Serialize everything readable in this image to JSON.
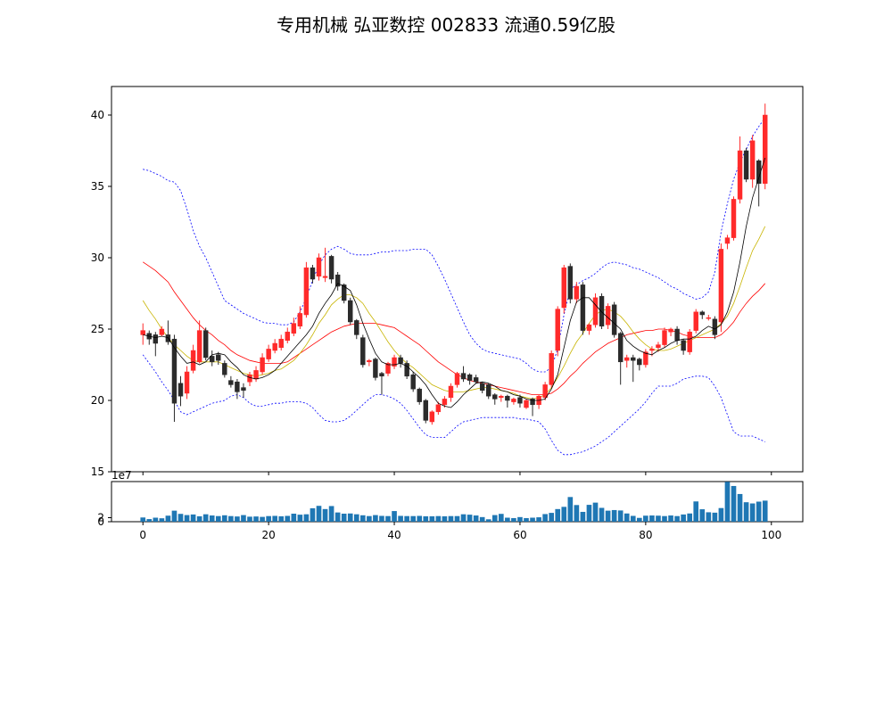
{
  "chart_data": [
    {
      "type": "candlestick",
      "title": "专用机械 弘亚数控 002833 流通0.59亿股",
      "xlabel": "",
      "ylabel": "",
      "xlim": [
        -5,
        105
      ],
      "ylim": [
        15,
        42
      ],
      "y_ticks": [
        15,
        20,
        25,
        30,
        35,
        40
      ],
      "x_tick_labels_shown": false,
      "grid": false,
      "colors": {
        "up": "#ff2a2a",
        "down": "#2b2b2b",
        "ma_short": "#000000",
        "ma_mid": "#c8b400",
        "ma_long": "#ff0000",
        "bands": "#0000ff"
      },
      "x": [
        0,
        1,
        2,
        3,
        4,
        5,
        6,
        7,
        8,
        9,
        10,
        11,
        12,
        13,
        14,
        15,
        16,
        17,
        18,
        19,
        20,
        21,
        22,
        23,
        24,
        25,
        26,
        27,
        28,
        29,
        30,
        31,
        32,
        33,
        34,
        35,
        36,
        37,
        38,
        39,
        40,
        41,
        42,
        43,
        44,
        45,
        46,
        47,
        48,
        49,
        50,
        51,
        52,
        53,
        54,
        55,
        56,
        57,
        58,
        59,
        60,
        61,
        62,
        63,
        64,
        65,
        66,
        67,
        68,
        69,
        70,
        71,
        72,
        73,
        74,
        75,
        76,
        77,
        78,
        79,
        80,
        81,
        82,
        83,
        84,
        85,
        86,
        87,
        88,
        89,
        90,
        91,
        92,
        93,
        94,
        95,
        96,
        97,
        98,
        99
      ],
      "open": [
        24.6,
        24.7,
        24.6,
        24.6,
        24.6,
        24.3,
        21.2,
        20.5,
        22.1,
        22.7,
        24.9,
        23.1,
        23.2,
        22.6,
        21.4,
        21.3,
        20.9,
        21.3,
        21.5,
        22.0,
        22.9,
        23.5,
        23.7,
        24.2,
        24.7,
        25.2,
        26.0,
        29.3,
        28.7,
        28.6,
        30.1,
        28.8,
        28.1,
        27.0,
        25.6,
        24.4,
        22.7,
        22.9,
        21.9,
        21.9,
        22.4,
        23.0,
        22.6,
        21.8,
        20.8,
        20.0,
        18.5,
        19.2,
        19.7,
        20.2,
        21.1,
        21.9,
        21.8,
        21.6,
        21.2,
        21.1,
        20.4,
        20.2,
        20.3,
        19.9,
        20.2,
        19.5,
        20.1,
        19.7,
        20.2,
        21.1,
        23.5,
        26.5,
        29.4,
        27.1,
        28.1,
        24.9,
        25.3,
        27.3,
        25.3,
        26.7,
        24.7,
        22.8,
        23.0,
        22.9,
        22.5,
        23.5,
        23.7,
        23.9,
        24.8,
        25.0,
        24.2,
        23.4,
        24.9,
        26.2,
        25.8,
        25.7,
        25.5,
        31.0,
        31.4,
        34.1,
        37.5,
        35.5,
        36.8,
        35.2
      ],
      "close": [
        24.9,
        24.3,
        24.0,
        25.0,
        24.1,
        19.8,
        20.3,
        22.0,
        23.5,
        24.9,
        23.0,
        22.7,
        22.8,
        21.8,
        21.1,
        20.6,
        20.7,
        21.8,
        22.1,
        23.0,
        23.6,
        24.0,
        24.3,
        24.8,
        25.4,
        26.1,
        29.3,
        28.5,
        30.0,
        28.7,
        28.5,
        28.0,
        27.0,
        25.5,
        24.6,
        22.5,
        22.8,
        21.6,
        21.7,
        22.6,
        23.0,
        22.6,
        21.7,
        20.8,
        19.9,
        18.6,
        19.2,
        19.7,
        20.1,
        21.0,
        21.9,
        21.5,
        21.4,
        21.3,
        20.7,
        20.3,
        20.1,
        20.3,
        20.0,
        20.1,
        19.8,
        20.0,
        19.7,
        20.3,
        21.1,
        23.3,
        26.4,
        29.3,
        27.1,
        28.0,
        24.9,
        25.3,
        27.2,
        25.2,
        26.6,
        24.6,
        22.7,
        23.0,
        22.8,
        22.5,
        23.4,
        23.6,
        23.9,
        24.9,
        25.0,
        24.2,
        23.5,
        24.8,
        26.2,
        26.0,
        25.8,
        24.6,
        30.6,
        31.4,
        34.1,
        37.5,
        35.5,
        38.2,
        35.2,
        40.0
      ],
      "high": [
        25.4,
        24.9,
        24.8,
        25.2,
        25.6,
        24.6,
        21.7,
        22.4,
        23.9,
        25.6,
        25.1,
        23.5,
        23.4,
        22.8,
        21.7,
        21.5,
        21.2,
        22.0,
        22.4,
        23.3,
        23.9,
        24.3,
        24.6,
        25.1,
        25.8,
        26.6,
        29.7,
        29.5,
        30.3,
        30.7,
        30.2,
        29.0,
        28.2,
        27.2,
        25.7,
        24.6,
        22.9,
        23.0,
        22.0,
        22.7,
        23.2,
        23.2,
        22.8,
        22.0,
        20.9,
        20.1,
        19.3,
        19.9,
        20.3,
        21.2,
        22.0,
        22.4,
        21.9,
        21.8,
        21.3,
        21.2,
        20.5,
        20.4,
        20.4,
        20.2,
        20.4,
        20.1,
        20.2,
        20.4,
        21.3,
        23.5,
        26.6,
        29.5,
        29.6,
        28.3,
        28.3,
        25.4,
        27.5,
        27.5,
        26.8,
        26.9,
        24.8,
        23.2,
        23.2,
        23.0,
        23.6,
        23.8,
        24.1,
        25.1,
        25.1,
        25.2,
        24.3,
        25.0,
        26.4,
        26.3,
        26.0,
        25.9,
        31.0,
        31.6,
        34.3,
        38.5,
        37.7,
        38.6,
        36.9,
        40.8
      ],
      "low": [
        23.9,
        23.9,
        23.1,
        24.5,
        23.9,
        18.5,
        19.6,
        20.1,
        21.9,
        22.6,
        22.8,
        22.4,
        22.5,
        21.6,
        20.9,
        20.1,
        20.2,
        21.0,
        21.3,
        21.8,
        22.7,
        23.3,
        23.5,
        24.0,
        24.5,
        25.0,
        25.8,
        28.2,
        28.4,
        28.3,
        28.2,
        27.7,
        26.8,
        25.3,
        24.3,
        22.3,
        22.4,
        21.4,
        20.4,
        21.7,
        22.2,
        22.3,
        21.5,
        20.6,
        19.7,
        18.4,
        18.3,
        19.0,
        19.5,
        19.9,
        20.9,
        21.3,
        21.1,
        21.2,
        20.5,
        20.1,
        19.7,
        19.9,
        19.5,
        19.7,
        19.5,
        19.4,
        18.9,
        19.4,
        20.0,
        20.9,
        23.1,
        26.1,
        26.8,
        26.8,
        24.6,
        24.6,
        25.1,
        25.0,
        25.0,
        24.4,
        21.1,
        22.3,
        21.3,
        22.1,
        22.3,
        23.1,
        23.4,
        23.7,
        24.5,
        23.9,
        23.2,
        23.2,
        24.7,
        25.7,
        25.6,
        24.3,
        24.8,
        30.6,
        31.2,
        33.8,
        35.3,
        34.9,
        33.6,
        34.8
      ],
      "volume": [
        2.1,
        1.3,
        2.0,
        1.7,
        3.0,
        5.5,
        3.9,
        3.3,
        3.6,
        2.7,
        3.7,
        3.1,
        2.8,
        3.2,
        2.8,
        2.6,
        3.3,
        2.5,
        2.6,
        2.4,
        2.8,
        2.9,
        2.7,
        2.9,
        4.0,
        3.5,
        3.7,
        6.7,
        7.9,
        6.3,
        7.8,
        4.6,
        4.0,
        4.1,
        3.7,
        3.2,
        2.8,
        3.3,
        2.9,
        2.8,
        5.3,
        2.9,
        2.8,
        2.8,
        2.9,
        2.7,
        2.7,
        2.8,
        2.7,
        2.8,
        2.8,
        3.7,
        3.5,
        3.1,
        2.3,
        1.2,
        3.3,
        3.9,
        2.0,
        1.8,
        2.3,
        1.8,
        2.0,
        2.2,
        3.8,
        4.4,
        6.3,
        7.4,
        12.3,
        8.3,
        4.9,
        8.4,
        9.5,
        6.9,
        5.5,
        5.8,
        5.6,
        4.1,
        2.9,
        1.9,
        3.0,
        3.1,
        3.0,
        2.8,
        3.1,
        2.8,
        3.6,
        4.1,
        10.1,
        6.2,
        4.7,
        4.5,
        6.8,
        19.9,
        17.8,
        13.8,
        9.7,
        9.1,
        10.0,
        10.5
      ],
      "volume_scale_label": "1e7",
      "volume_ylim": [
        0,
        20
      ],
      "volume_y_ticks": [
        0,
        2
      ],
      "volume_x_ticks": [
        0,
        20,
        40,
        60,
        80,
        100
      ],
      "ma_short": [
        24.6,
        24.5,
        24.4,
        24.5,
        24.4,
        23.7,
        23.1,
        22.6,
        22.7,
        22.5,
        22.7,
        23.2,
        23.3,
        23.2,
        22.7,
        22.3,
        21.8,
        21.6,
        21.5,
        21.6,
        21.8,
        22.1,
        22.6,
        23.1,
        23.6,
        24.1,
        24.6,
        25.2,
        26.1,
        26.8,
        27.4,
        28.2,
        28.0,
        27.7,
        26.7,
        25.4,
        24.3,
        23.3,
        22.7,
        22.5,
        22.5,
        22.6,
        22.4,
        22.0,
        21.6,
        21.1,
        20.4,
        19.8,
        19.6,
        19.5,
        19.9,
        20.4,
        20.8,
        21.2,
        21.3,
        21.2,
        21.0,
        20.7,
        20.6,
        20.4,
        20.3,
        20.1,
        20.0,
        20.0,
        20.1,
        20.8,
        21.8,
        23.7,
        25.6,
        26.9,
        27.2,
        27.2,
        26.7,
        26.2,
        25.8,
        25.4,
        25.0,
        24.2,
        23.8,
        23.5,
        23.3,
        23.2,
        23.5,
        23.7,
        24.0,
        24.2,
        24.3,
        24.3,
        24.5,
        24.9,
        25.2,
        25.0,
        25.3,
        26.2,
        27.6,
        29.7,
        32.2,
        34.2,
        35.6,
        37.0
      ],
      "ma_mid": [
        27.0,
        26.3,
        25.7,
        25.0,
        24.4,
        23.9,
        23.5,
        23.1,
        22.8,
        22.7,
        22.7,
        22.7,
        22.7,
        22.5,
        22.3,
        22.1,
        21.9,
        21.8,
        21.7,
        21.8,
        21.9,
        22.1,
        22.2,
        22.5,
        22.8,
        23.3,
        23.9,
        24.6,
        25.4,
        26.0,
        26.7,
        27.1,
        27.4,
        27.4,
        27.2,
        26.8,
        26.1,
        25.5,
        24.8,
        24.1,
        23.5,
        23.0,
        22.6,
        22.3,
        21.9,
        21.5,
        21.1,
        20.9,
        20.7,
        20.6,
        20.6,
        20.6,
        20.7,
        20.8,
        20.9,
        20.9,
        20.8,
        20.7,
        20.6,
        20.5,
        20.3,
        20.2,
        20.1,
        20.2,
        20.4,
        20.9,
        21.6,
        22.4,
        23.3,
        24.1,
        24.7,
        25.4,
        26.0,
        26.3,
        26.4,
        26.2,
        25.9,
        25.4,
        24.8,
        24.3,
        23.9,
        23.6,
        23.5,
        23.5,
        23.6,
        23.8,
        24.0,
        24.2,
        24.4,
        24.6,
        24.8,
        25.0,
        25.4,
        25.9,
        26.8,
        28.0,
        29.3,
        30.5,
        31.3,
        32.2
      ],
      "ma_long": [
        29.7,
        29.4,
        29.1,
        28.7,
        28.3,
        27.6,
        27.0,
        26.4,
        25.8,
        25.3,
        24.9,
        24.6,
        24.2,
        23.9,
        23.5,
        23.2,
        23.0,
        22.8,
        22.7,
        22.6,
        22.6,
        22.6,
        22.6,
        22.7,
        23.0,
        23.3,
        23.6,
        23.9,
        24.2,
        24.5,
        24.8,
        25.0,
        25.2,
        25.3,
        25.4,
        25.4,
        25.4,
        25.4,
        25.3,
        25.2,
        25.1,
        24.8,
        24.5,
        24.2,
        23.9,
        23.5,
        23.1,
        22.7,
        22.4,
        22.1,
        21.8,
        21.6,
        21.4,
        21.3,
        21.2,
        21.1,
        21.0,
        20.9,
        20.8,
        20.7,
        20.6,
        20.5,
        20.4,
        20.4,
        20.4,
        20.5,
        20.8,
        21.2,
        21.7,
        22.1,
        22.6,
        23.0,
        23.4,
        23.7,
        24.0,
        24.2,
        24.4,
        24.6,
        24.7,
        24.8,
        24.9,
        24.9,
        25.0,
        25.0,
        24.9,
        24.8,
        24.6,
        24.5,
        24.4,
        24.4,
        24.4,
        24.4,
        24.6,
        25.0,
        25.5,
        26.2,
        26.8,
        27.3,
        27.7,
        28.2
      ],
      "band_upper": [
        36.2,
        36.1,
        35.9,
        35.7,
        35.4,
        35.3,
        34.7,
        33.4,
        31.9,
        30.8,
        30.0,
        29.0,
        28.0,
        27.0,
        26.7,
        26.4,
        26.1,
        25.9,
        25.7,
        25.5,
        25.4,
        25.4,
        25.3,
        25.3,
        25.5,
        26.2,
        27.2,
        28.4,
        29.5,
        30.2,
        30.6,
        30.8,
        30.6,
        30.3,
        30.2,
        30.2,
        30.2,
        30.3,
        30.4,
        30.4,
        30.5,
        30.5,
        30.5,
        30.6,
        30.6,
        30.6,
        30.2,
        29.4,
        28.5,
        27.5,
        26.5,
        25.5,
        24.6,
        24.0,
        23.6,
        23.4,
        23.3,
        23.2,
        23.1,
        23.0,
        22.9,
        22.6,
        22.2,
        22.0,
        22.0,
        22.3,
        23.6,
        26.0,
        27.8,
        28.1,
        28.4,
        28.6,
        28.9,
        29.3,
        29.6,
        29.7,
        29.6,
        29.5,
        29.3,
        29.2,
        29.0,
        28.8,
        28.6,
        28.3,
        28.0,
        27.8,
        27.5,
        27.3,
        27.1,
        27.2,
        27.6,
        29.0,
        31.8,
        33.8,
        35.5,
        36.7,
        37.6,
        38.5,
        39.2,
        39.8
      ],
      "band_lower": [
        23.2,
        22.6,
        22.0,
        21.3,
        20.7,
        20.0,
        19.2,
        19.0,
        19.2,
        19.4,
        19.6,
        19.8,
        19.9,
        20.0,
        20.3,
        20.4,
        20.2,
        19.8,
        19.6,
        19.6,
        19.7,
        19.8,
        19.8,
        19.9,
        19.9,
        19.9,
        19.8,
        19.5,
        19.0,
        18.6,
        18.5,
        18.5,
        18.6,
        18.9,
        19.3,
        19.7,
        20.1,
        20.4,
        20.4,
        20.3,
        20.1,
        19.8,
        19.3,
        18.7,
        18.1,
        17.6,
        17.4,
        17.4,
        17.4,
        17.8,
        18.2,
        18.5,
        18.6,
        18.7,
        18.8,
        18.8,
        18.8,
        18.8,
        18.8,
        18.8,
        18.7,
        18.7,
        18.6,
        18.5,
        18.0,
        17.2,
        16.5,
        16.2,
        16.2,
        16.3,
        16.4,
        16.6,
        16.8,
        17.1,
        17.4,
        17.8,
        18.2,
        18.6,
        19.0,
        19.4,
        19.9,
        20.5,
        21.0,
        21.0,
        21.0,
        21.2,
        21.5,
        21.6,
        21.7,
        21.7,
        21.6,
        21.0,
        20.2,
        19.0,
        17.8,
        17.5,
        17.5,
        17.5,
        17.3,
        17.1
      ]
    }
  ]
}
